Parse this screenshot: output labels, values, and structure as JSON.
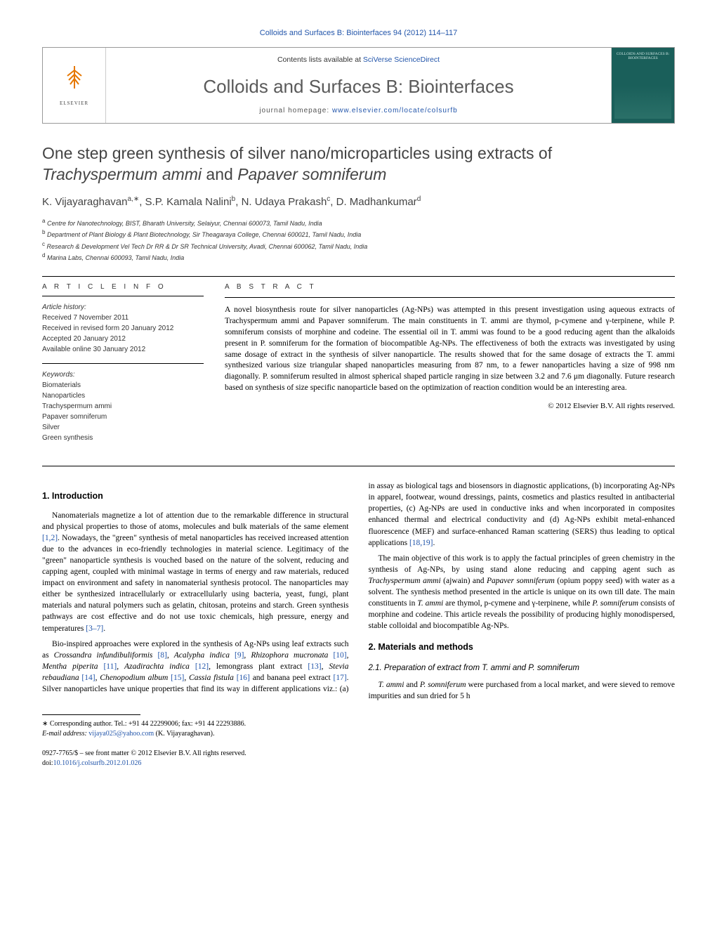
{
  "top_line": "Colloids and Surfaces B: Biointerfaces 94 (2012) 114–117",
  "header": {
    "contents_prefix": "Contents lists available at ",
    "contents_link": "SciVerse ScienceDirect",
    "journal": "Colloids and Surfaces B: Biointerfaces",
    "homepage_prefix": "journal homepage: ",
    "homepage_link": "www.elsevier.com/locate/colsurfb",
    "publisher": "ELSEVIER",
    "cover_text": "COLLOIDS AND SURFACES B: BIOINTERFACES"
  },
  "title_line1": "One step green synthesis of silver nano/microparticles using extracts of",
  "title_italic": "Trachyspermum ammi",
  "title_and": " and ",
  "title_italic2": "Papaver somniferum",
  "authors_html": "K. Vijayaraghavan<sup>a,∗</sup>, S.P. Kamala Nalini<sup>b</sup>, N. Udaya Prakash<sup>c</sup>, D. Madhankumar<sup>d</sup>",
  "affiliations": [
    "a Centre for Nanotechnology, BIST, Bharath University, Selaiyur, Chennai 600073, Tamil Nadu, India",
    "b Department of Plant Biology & Plant Biotechnology, Sir Theagaraya College, Chennai 600021, Tamil Nadu, India",
    "c Research & Development Vel Tech Dr RR & Dr SR Technical University, Avadi, Chennai 600062, Tamil Nadu, India",
    "d Marina Labs, Chennai 600093, Tamil Nadu, India"
  ],
  "article_info_heading": "a r t i c l e   i n f o",
  "history_label": "Article history:",
  "history": [
    "Received 7 November 2011",
    "Received in revised form 20 January 2012",
    "Accepted 20 January 2012",
    "Available online 30 January 2012"
  ],
  "keywords_label": "Keywords:",
  "keywords": [
    "Biomaterials",
    "Nanoparticles",
    "Trachyspermum ammi",
    "Papaver somniferum",
    "Silver",
    "Green synthesis"
  ],
  "abstract_heading": "a b s t r a c t",
  "abstract": "A novel biosynthesis route for silver nanoparticles (Ag-NPs) was attempted in this present investigation using aqueous extracts of Trachyspermum ammi and Papaver somniferum. The main constituents in T. ammi are thymol, p-cymene and γ-terpinene, while P. somniferum consists of morphine and codeine. The essential oil in T. ammi was found to be a good reducing agent than the alkaloids present in P. somniferum for the formation of biocompatible Ag-NPs. The effectiveness of both the extracts was investigated by using same dosage of extract in the synthesis of silver nanoparticle. The results showed that for the same dosage of extracts the T. ammi synthesized various size triangular shaped nanoparticles measuring from 87 nm, to a fewer nanoparticles having a size of 998 nm diagonally. P. somniferum resulted in almost spherical shaped particle ranging in size between 3.2 and 7.6 μm diagonally. Future research based on synthesis of size specific nanoparticle based on the optimization of reaction condition would be an interesting area.",
  "copyright": "© 2012 Elsevier B.V. All rights reserved.",
  "sec1_heading": "1.  Introduction",
  "sec1_p1": "Nanomaterials magnetize a lot of attention due to the remarkable difference in structural and physical properties to those of atoms, molecules and bulk materials of the same element [1,2]. Nowadays, the \"green\" synthesis of metal nanoparticles has received increased attention due to the advances in eco-friendly technologies in material science. Legitimacy of the \"green\" nanoparticle synthesis is vouched based on the nature of the solvent, reducing and capping agent, coupled with minimal wastage in terms of energy and raw materials, reduced impact on environment and safety in nanomaterial synthesis protocol. The nanoparticles may either be synthesized intracellularly or extracellularly using bacteria, yeast, fungi, plant materials and natural polymers such as gelatin, chitosan, proteins and starch. Green synthesis pathways are cost effective and do not use toxic chemicals, high pressure, energy and temperatures [3–7].",
  "sec1_p2": "Bio-inspired approaches were explored in the synthesis of Ag-NPs using leaf extracts such as Crossandra infundibuliformis [8], Acalypha indica [9], Rhizophora mucronata [10], Mentha piperita [11], Azadirachta indica [12], lemongrass plant extract [13], Stevia rebaudiana [14], Chenopodium album [15], Cassia fistula [16] and banana peel extract [17]. Silver nanoparticles have unique properties that find its way in different applications viz.: (a) in assay as biological tags and biosensors in diagnostic applications, (b) incorporating Ag-NPs in apparel, footwear, wound dressings, paints, cosmetics and plastics resulted in antibacterial properties, (c) Ag-NPs are used in conductive inks and when incorporated in composites enhanced thermal and electrical conductivity and (d) Ag-NPs exhibit metal-enhanced fluorescence (MEF) and surface-enhanced Raman scattering (SERS) thus leading to optical applications [18,19].",
  "sec1_p3": "The main objective of this work is to apply the factual principles of green chemistry in the synthesis of Ag-NPs, by using stand alone reducing and capping agent such as Trachyspermum ammi (ajwain) and Papaver somniferum (opium poppy seed) with water as a solvent. The synthesis method presented in the article is unique on its own till date. The main constituents in T. ammi are thymol, p-cymene and γ-terpinene, while P. somniferum consists of morphine and codeine. This article reveals the possibility of producing highly monodispersed, stable colloidal and biocompatible Ag-NPs.",
  "sec2_heading": "2.  Materials and methods",
  "sec21_heading": "2.1.  Preparation of extract from T. ammi and P. somniferum",
  "sec21_p1": "T. ammi and P. somniferum were purchased from a local market, and were sieved to remove impurities and sun dried for 5 h",
  "footnote_marker": "∗",
  "footnote_text": " Corresponding author. Tel.: +91 44 22299006; fax: +91 44 22293886.",
  "footnote_email_label": "E-mail address: ",
  "footnote_email": "vijaya025@yahoo.com",
  "footnote_email_tail": " (K. Vijayaraghavan).",
  "bottom_line1": "0927-7765/$ – see front matter © 2012 Elsevier B.V. All rights reserved.",
  "bottom_doi_label": "doi:",
  "bottom_doi": "10.1016/j.colsurfb.2012.01.026",
  "colors": {
    "link": "#2255aa",
    "logo_orange": "#e67700",
    "heading_gray": "#5a5a5a",
    "cover_bg": "#1a5f5a"
  }
}
